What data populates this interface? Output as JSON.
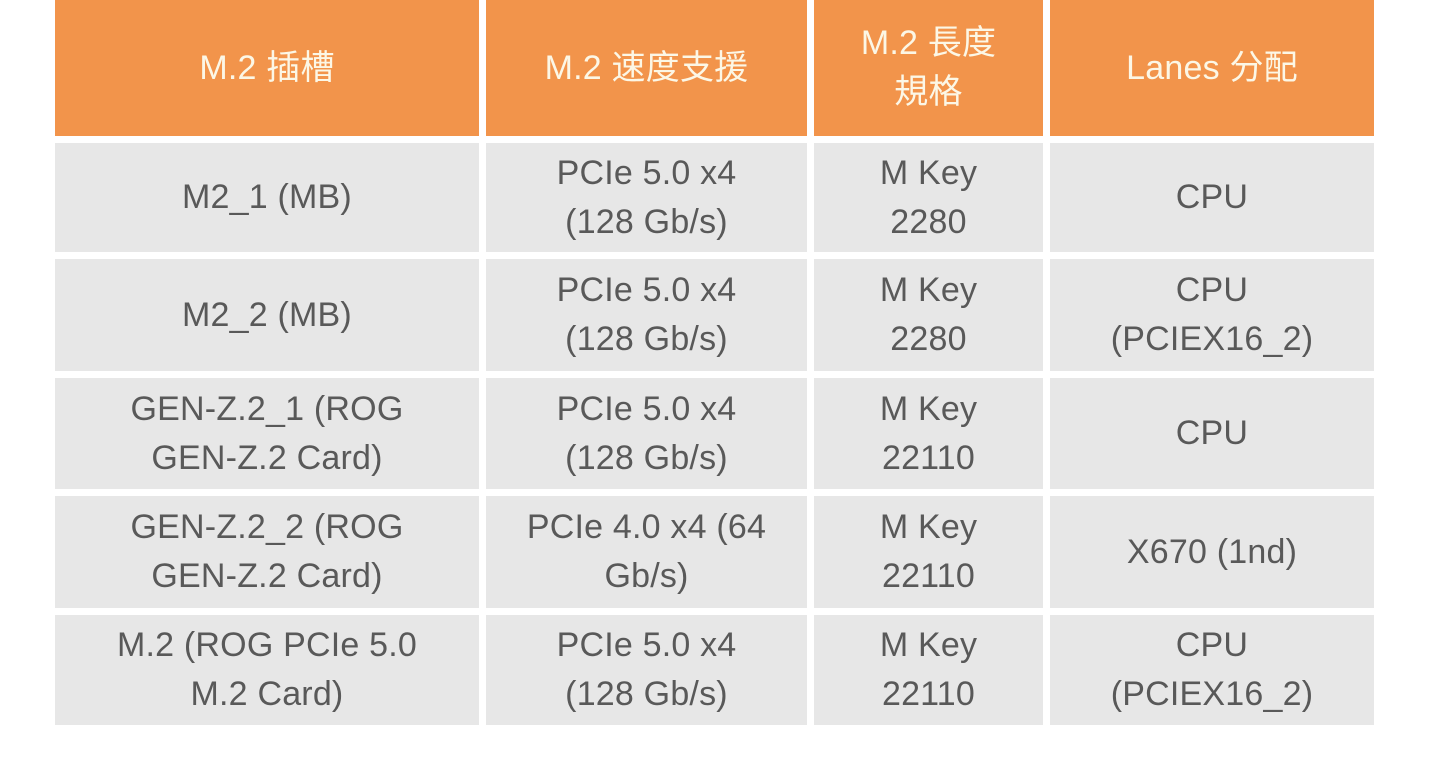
{
  "chart_data": {
    "type": "table",
    "columns": [
      "M.2 插槽",
      "M.2 速度支援",
      "M.2 長度\n規格",
      "Lanes 分配"
    ],
    "rows": [
      [
        "M2_1 (MB)",
        "PCIe 5.0 x4\n(128 Gb/s)",
        "M Key\n2280",
        "CPU"
      ],
      [
        "M2_2 (MB)",
        "PCIe 5.0 x4\n(128 Gb/s)",
        "M Key\n2280",
        "CPU\n(PCIEX16_2)"
      ],
      [
        "GEN-Z.2_1 (ROG\nGEN-Z.2 Card)",
        "PCIe 5.0 x4\n(128 Gb/s)",
        "M Key\n22110",
        "CPU"
      ],
      [
        "GEN-Z.2_2 (ROG\nGEN-Z.2 Card)",
        "PCIe 4.0 x4 (64\nGb/s)",
        "M Key\n22110",
        "X670 (1nd)"
      ],
      [
        "M.2 (ROG PCIe 5.0\nM.2 Card)",
        "PCIe 5.0 x4\n(128 Gb/s)",
        "M Key\n22110",
        "CPU\n(PCIEX16_2)"
      ]
    ],
    "layout": {
      "header_position": "top",
      "grid": "white-gutter-separated-cells",
      "text_align": "center"
    },
    "colors": {
      "header_bg": "#F2944B",
      "header_text": "#FCF7E6",
      "cell_bg": "#E7E7E7",
      "cell_text": "#595959",
      "page_bg": "#FFFFFF"
    }
  }
}
